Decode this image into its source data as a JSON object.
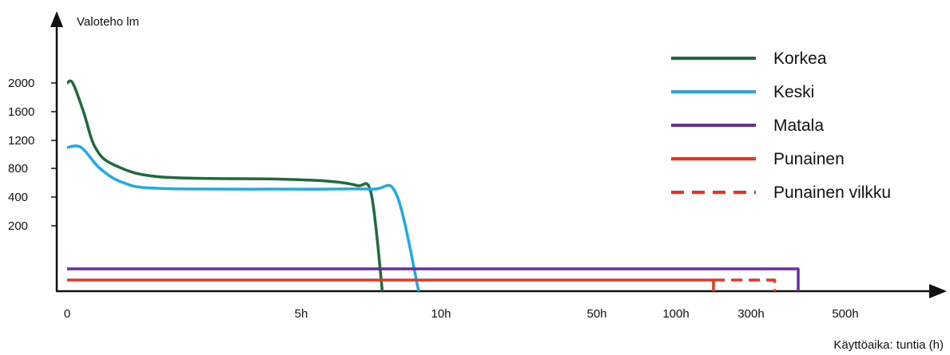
{
  "chart_data": {
    "type": "line",
    "ylabel": "Valoteho lm",
    "xlabel": "Käyttöaika: tuntia (h)",
    "y_ticks": [
      "2000",
      "1600",
      "1200",
      "800",
      "400",
      "200"
    ],
    "x_ticks": [
      "0",
      "5h",
      "10h",
      "50h",
      "100h",
      "300h",
      "500h"
    ],
    "legend_position": "top-right",
    "grid": false,
    "series": [
      {
        "name": "Korkea",
        "color": "#1c6b38",
        "dash": false,
        "points": [
          [
            0,
            2000
          ],
          [
            0.12,
            2000
          ],
          [
            0.35,
            1600
          ],
          [
            0.6,
            1100
          ],
          [
            1.0,
            850
          ],
          [
            2.0,
            680
          ],
          [
            4.5,
            650
          ],
          [
            6.0,
            620
          ],
          [
            7.0,
            560
          ],
          [
            7.5,
            450
          ],
          [
            7.9,
            0
          ]
        ]
      },
      {
        "name": "Keski",
        "color": "#1eaaea",
        "dash": false,
        "points": [
          [
            0,
            1100
          ],
          [
            0.3,
            1100
          ],
          [
            0.7,
            800
          ],
          [
            1.2,
            600
          ],
          [
            2.0,
            520
          ],
          [
            5.0,
            510
          ],
          [
            7.5,
            510
          ],
          [
            8.4,
            440
          ],
          [
            9.2,
            0
          ]
        ]
      },
      {
        "name": "Matala",
        "color": "#6a2ea2",
        "dash": false,
        "points": [
          [
            0,
            30
          ],
          [
            5,
            30
          ],
          [
            10,
            30
          ],
          [
            50,
            30
          ],
          [
            100,
            30
          ],
          [
            300,
            30
          ],
          [
            400,
            30
          ],
          [
            400,
            0
          ]
        ]
      },
      {
        "name": "Punainen",
        "color": "#ea3323",
        "dash": false,
        "points": [
          [
            0,
            12
          ],
          [
            5,
            12
          ],
          [
            10,
            12
          ],
          [
            50,
            12
          ],
          [
            100,
            12
          ],
          [
            200,
            12
          ],
          [
            200,
            0
          ]
        ]
      },
      {
        "name": "Punainen vilkku",
        "color": "#ea3323",
        "dash": true,
        "points": [
          [
            200,
            12
          ],
          [
            300,
            12
          ],
          [
            350,
            12
          ],
          [
            350,
            0
          ]
        ]
      }
    ]
  }
}
